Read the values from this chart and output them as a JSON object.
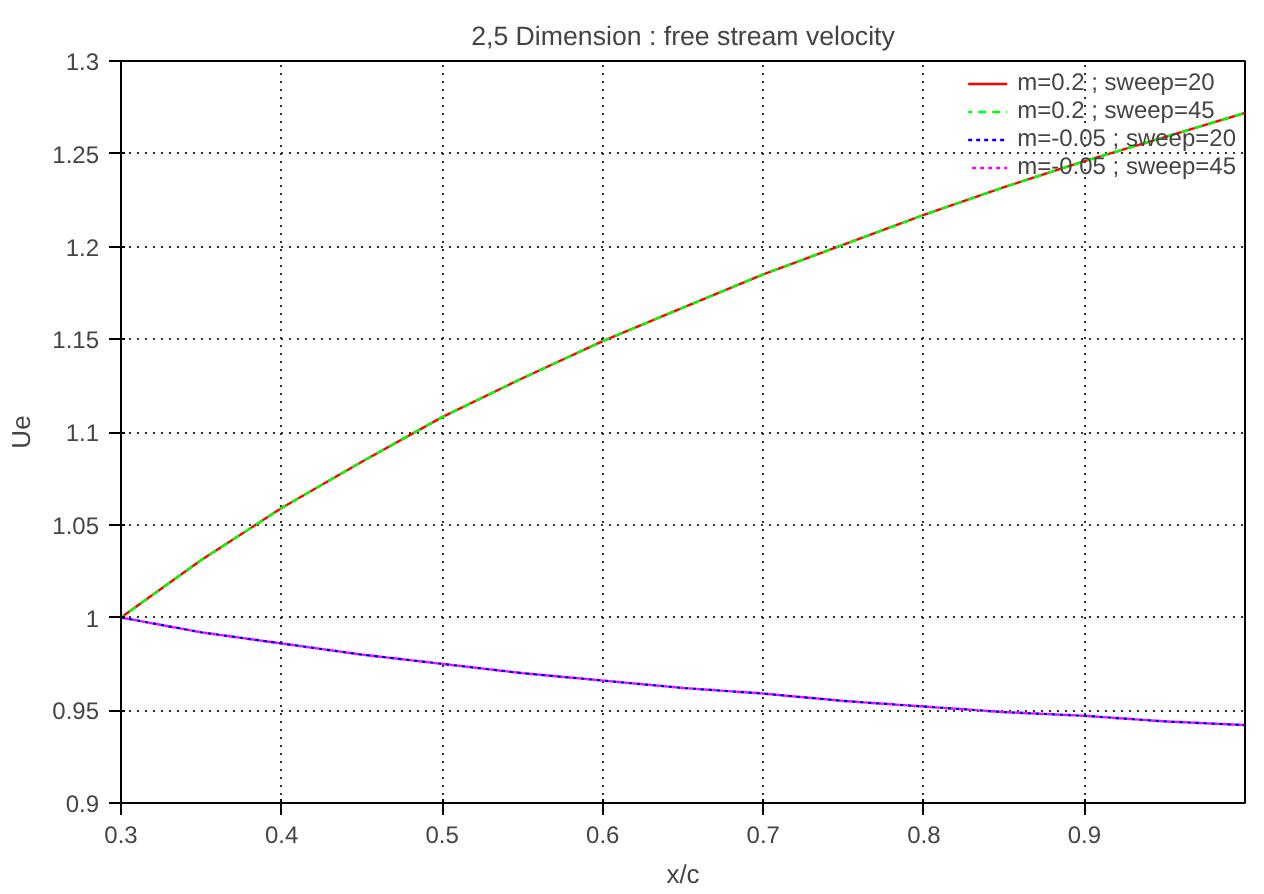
{
  "chart_data": {
    "type": "line",
    "title": "2,5 Dimension : free stream velocity",
    "xlabel": "x/c",
    "ylabel": "Ue",
    "x": [
      0.3,
      0.35,
      0.4,
      0.45,
      0.5,
      0.55,
      0.6,
      0.65,
      0.7,
      0.75,
      0.8,
      0.85,
      0.9,
      0.95,
      1.0
    ],
    "series": [
      {
        "name": "m=0.2 ; sweep=20",
        "color": "#ff0000",
        "line_style": "solid",
        "values": [
          1,
          1.031,
          1.059,
          1.084,
          1.108,
          1.129,
          1.149,
          1.167,
          1.185,
          1.201,
          1.217,
          1.232,
          1.246,
          1.259,
          1.272
        ]
      },
      {
        "name": "m=0.2 ; sweep=45",
        "color": "#00ff00",
        "line_style": "dashed",
        "values": [
          1,
          1.031,
          1.059,
          1.084,
          1.108,
          1.129,
          1.149,
          1.167,
          1.185,
          1.201,
          1.217,
          1.232,
          1.246,
          1.259,
          1.272
        ]
      },
      {
        "name": "m=-0.05 ; sweep=20",
        "color": "#0000ff",
        "line_style": "dotted",
        "values": [
          1,
          0.992,
          0.986,
          0.98,
          0.975,
          0.97,
          0.966,
          0.962,
          0.959,
          0.955,
          0.952,
          0.949,
          0.947,
          0.944,
          0.942
        ]
      },
      {
        "name": "m=-0.05 ; sweep=45",
        "color": "#ff00ff",
        "line_style": "dotted",
        "values": [
          1,
          0.992,
          0.986,
          0.98,
          0.975,
          0.97,
          0.966,
          0.962,
          0.959,
          0.955,
          0.952,
          0.949,
          0.947,
          0.944,
          0.942
        ]
      }
    ],
    "xlim": [
      0.3,
      1.0
    ],
    "ylim": [
      0.9,
      1.3
    ],
    "xticks": [
      0.3,
      0.4,
      0.5,
      0.6,
      0.7,
      0.8,
      0.9
    ],
    "yticks": [
      0.9,
      0.95,
      1,
      1.05,
      1.1,
      1.15,
      1.2,
      1.25,
      1.3
    ],
    "grid": true,
    "legend": "top right"
  }
}
